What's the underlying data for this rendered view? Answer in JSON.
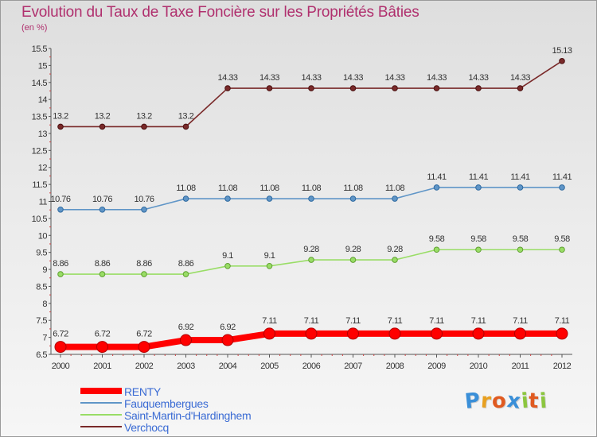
{
  "header": {
    "title": "Evolution du Taux de Taxe Foncière sur les Propriétés Bâties",
    "unit": "(en %)"
  },
  "chart_data": {
    "type": "line",
    "x": [
      "2000",
      "2001",
      "2002",
      "2003",
      "2004",
      "2005",
      "2006",
      "2007",
      "2008",
      "2009",
      "2010",
      "2011",
      "2012"
    ],
    "ylim": [
      6.5,
      15.5
    ],
    "y_ticks": [
      "6.5",
      "7",
      "7.5",
      "8",
      "8.5",
      "9",
      "9.5",
      "10",
      "10.5",
      "11",
      "11.5",
      "12",
      "12.5",
      "13",
      "13.5",
      "14",
      "14.5",
      "15",
      "15.5"
    ],
    "grid": false,
    "legend_position": "bottom-left",
    "series": [
      {
        "name": "RENTY",
        "color": "#ff0000",
        "values": [
          6.72,
          6.72,
          6.72,
          6.92,
          6.92,
          7.11,
          7.11,
          7.11,
          7.11,
          7.11,
          7.11,
          7.11,
          7.11
        ],
        "labels": [
          "6.72",
          "6.72",
          "6.72",
          "6.92",
          "6.92",
          "7.11",
          "7.11",
          "7.11",
          "7.11",
          "7.11",
          "7.11",
          "7.11",
          "7.11"
        ]
      },
      {
        "name": "Fauquembergues",
        "color": "#5f95c7",
        "values": [
          10.76,
          10.76,
          10.76,
          11.08,
          11.08,
          11.08,
          11.08,
          11.08,
          11.08,
          11.41,
          11.41,
          11.41,
          11.41
        ],
        "labels": [
          "10.76",
          "10.76",
          "10.76",
          "11.08",
          "11.08",
          "11.08",
          "11.08",
          "11.08",
          "11.08",
          "11.41",
          "11.41",
          "11.41",
          "11.41"
        ]
      },
      {
        "name": "Saint-Martin-d'Hardinghem",
        "color": "#99dd66",
        "values": [
          8.86,
          8.86,
          8.86,
          8.86,
          9.1,
          9.1,
          9.28,
          9.28,
          9.28,
          9.58,
          9.58,
          9.58,
          9.58
        ],
        "labels": [
          "8.86",
          "8.86",
          "8.86",
          "8.86",
          "9.1",
          "9.1",
          "9.28",
          "9.28",
          "9.28",
          "9.58",
          "9.58",
          "9.58",
          "9.58"
        ]
      },
      {
        "name": "Verchocq",
        "color": "#7a2a2a",
        "values": [
          13.2,
          13.2,
          13.2,
          13.2,
          14.33,
          14.33,
          14.33,
          14.33,
          14.33,
          14.33,
          14.33,
          14.33,
          15.13
        ],
        "labels": [
          "13.2",
          "13.2",
          "13.2",
          "13.2",
          "14.33",
          "14.33",
          "14.33",
          "14.33",
          "14.33",
          "14.33",
          "14.33",
          "14.33",
          "15.13"
        ]
      }
    ]
  },
  "logo": {
    "text": "Proxiti",
    "letter_colors": [
      "#3a8fd8",
      "#e8a020",
      "#e05a20",
      "#3a8fd8",
      "#8cc63f",
      "#e05a20",
      "#8cc63f"
    ]
  }
}
